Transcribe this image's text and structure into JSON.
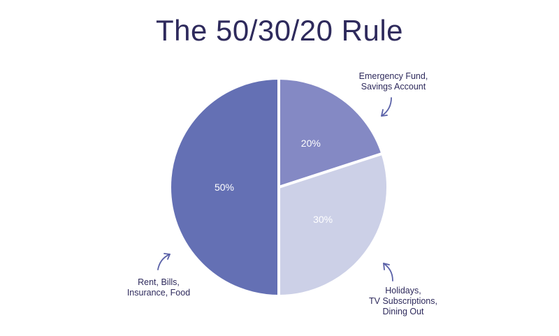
{
  "title": "The 50/30/20 Rule",
  "chart_data": {
    "type": "pie",
    "title": "The 50/30/20 Rule",
    "slices": [
      {
        "label": "20%",
        "value": 20,
        "color": "#8489c4",
        "annotation": [
          "Emergency Fund,",
          "Savings Account"
        ]
      },
      {
        "label": "30%",
        "value": 30,
        "color": "#ccd0e7",
        "annotation": [
          "Holidays,",
          "TV Subscriptions,",
          "Dining Out"
        ]
      },
      {
        "label": "50%",
        "value": 50,
        "color": "#6470b4",
        "annotation": [
          "Rent, Bills,",
          "Insurance, Food"
        ]
      }
    ],
    "label_color": "#ffffff",
    "annotation_color": "#2e2a5c",
    "arrow_color": "#5b62a8"
  }
}
